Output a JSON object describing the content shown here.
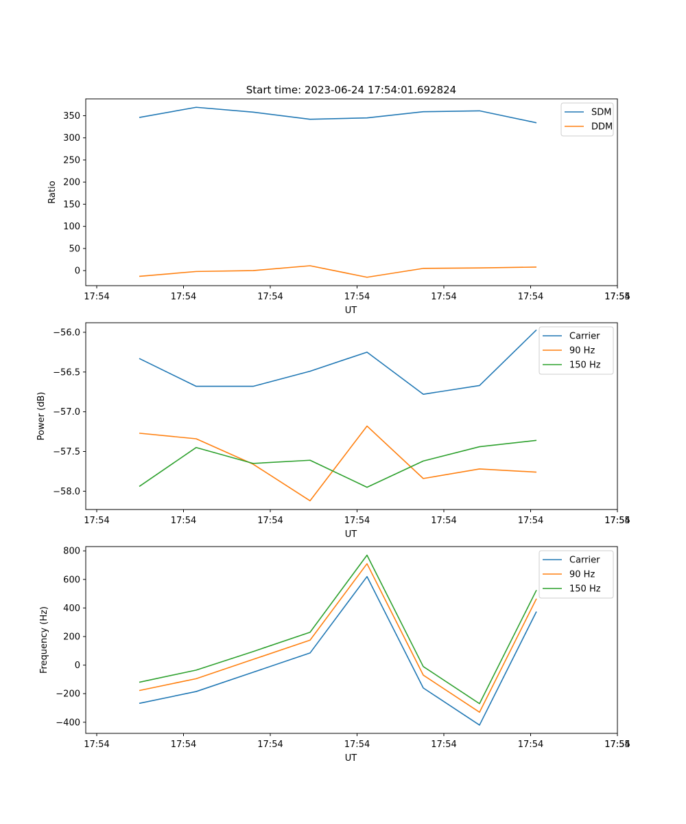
{
  "figure": {
    "title": "Start time: 2023-06-24 17:54:01.692824"
  },
  "colors": {
    "blue": "#1f77b4",
    "orange": "#ff7f0e",
    "green": "#2ca02c"
  },
  "chart_data": [
    {
      "type": "line",
      "xlabel": "UT",
      "ylabel": "Ratio",
      "x_tick_labels": [
        "17:54",
        "17:54",
        "17:54",
        "17:54",
        "17:54",
        "17:54",
        "17:54",
        "17:55"
      ],
      "y_ticks": [
        0,
        50,
        100,
        150,
        200,
        250,
        300,
        350
      ],
      "y_tick_labels": [
        "0",
        "50",
        "100",
        "150",
        "200",
        "250",
        "300",
        "350"
      ],
      "ylim": [
        -34,
        388
      ],
      "legend_position": "top-right",
      "series": [
        {
          "name": "SDM",
          "color": "#1f77b4",
          "values": [
            346,
            369,
            358,
            342,
            345,
            359,
            361,
            334
          ]
        },
        {
          "name": "DDM",
          "color": "#ff7f0e",
          "values": [
            -13,
            -2,
            0,
            11,
            -15,
            5,
            6,
            8
          ]
        }
      ]
    },
    {
      "type": "line",
      "xlabel": "UT",
      "ylabel": "Power (dB)",
      "x_tick_labels": [
        "17:54",
        "17:54",
        "17:54",
        "17:54",
        "17:54",
        "17:54",
        "17:54",
        "17:55"
      ],
      "y_ticks": [
        -58.0,
        -57.5,
        -57.0,
        -56.5,
        -56.0
      ],
      "y_tick_labels": [
        "−58.0",
        "−57.5",
        "−57.0",
        "−56.5",
        "−56.0"
      ],
      "ylim": [
        -58.23,
        -55.88
      ],
      "legend_position": "top-right",
      "series": [
        {
          "name": "Carrier",
          "color": "#1f77b4",
          "values": [
            -56.33,
            -56.68,
            -56.68,
            -56.49,
            -56.25,
            -56.78,
            -56.67,
            -55.97
          ]
        },
        {
          "name": "90 Hz",
          "color": "#ff7f0e",
          "values": [
            -57.27,
            -57.34,
            -57.66,
            -58.12,
            -57.18,
            -57.84,
            -57.72,
            -57.76
          ]
        },
        {
          "name": "150 Hz",
          "color": "#2ca02c",
          "values": [
            -57.94,
            -57.45,
            -57.65,
            -57.61,
            -57.95,
            -57.62,
            -57.44,
            -57.36
          ]
        }
      ]
    },
    {
      "type": "line",
      "xlabel": "UT",
      "ylabel": "Frequency (Hz)",
      "x_tick_labels": [
        "17:54",
        "17:54",
        "17:54",
        "17:54",
        "17:54",
        "17:54",
        "17:54",
        "17:55"
      ],
      "y_ticks": [
        -400,
        -200,
        0,
        200,
        400,
        600,
        800
      ],
      "y_tick_labels": [
        "−400",
        "−200",
        "0",
        "200",
        "400",
        "600",
        "800"
      ],
      "ylim": [
        -478,
        830
      ],
      "legend_position": "top-right",
      "series": [
        {
          "name": "Carrier",
          "color": "#1f77b4",
          "values": [
            -268,
            -185,
            -50,
            85,
            620,
            -160,
            -420,
            375
          ]
        },
        {
          "name": "90 Hz",
          "color": "#ff7f0e",
          "values": [
            -178,
            -95,
            40,
            175,
            710,
            -70,
            -330,
            465
          ]
        },
        {
          "name": "150 Hz",
          "color": "#2ca02c",
          "values": [
            -120,
            -35,
            95,
            230,
            770,
            -10,
            -270,
            525
          ]
        }
      ]
    }
  ]
}
